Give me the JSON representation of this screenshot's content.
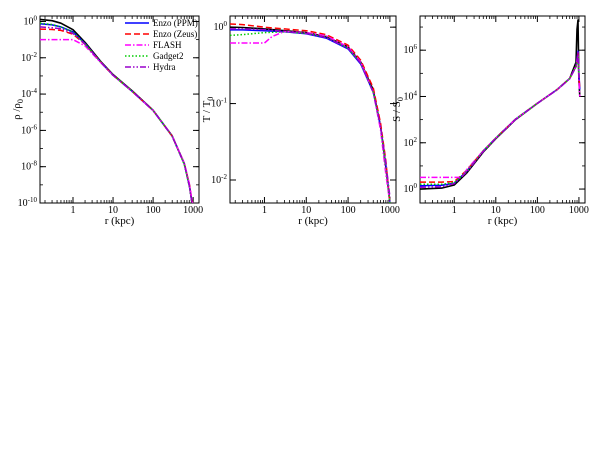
{
  "figure": {
    "legend": [
      {
        "name": "Enzo (PPM)",
        "color": "#0000ff",
        "dash": "solid"
      },
      {
        "name": "Enzo (Zeus)",
        "color": "#ff0000",
        "dash": "dashed"
      },
      {
        "name": "FLASH",
        "color": "#ff00ff",
        "dash": "dashdot"
      },
      {
        "name": "Gadget2",
        "color": "#00cc00",
        "dash": "dotted"
      },
      {
        "name": "Hydra",
        "color": "#9900cc",
        "dash": "dashdotdot"
      }
    ]
  },
  "chart_data": [
    {
      "type": "line",
      "title": "",
      "xlabel": "r (kpc)",
      "ylabel": "ρ /ρ",
      "ylabel_sub": "0",
      "xscale": "log",
      "yscale": "log",
      "xlim": [
        0.15,
        1400
      ],
      "ylim": [
        1e-10,
        2
      ],
      "xticks": [
        {
          "v": 1,
          "label": "1"
        },
        {
          "v": 10,
          "label": "10"
        },
        {
          "v": 100,
          "label": "100"
        },
        {
          "v": 1000,
          "label": "1000"
        }
      ],
      "yticks": [
        {
          "v": 1e-10,
          "base": "10",
          "exp": "-10"
        },
        {
          "v": 1e-08,
          "base": "10",
          "exp": "-8"
        },
        {
          "v": 1e-06,
          "base": "10",
          "exp": "-6"
        },
        {
          "v": 0.0001,
          "base": "10",
          "exp": "-4"
        },
        {
          "v": 0.01,
          "base": "10",
          "exp": "-2"
        },
        {
          "v": 1,
          "base": "10",
          "exp": "0"
        }
      ],
      "legend_placement": "top-right",
      "series": [
        {
          "key": "black",
          "color": "#000000",
          "dash": "solid",
          "x": [
            0.15,
            0.3,
            0.5,
            1,
            2,
            5,
            10,
            30,
            100,
            300,
            600,
            800,
            900,
            1000
          ],
          "y": [
            1.3,
            1.1,
            0.8,
            0.35,
            0.07,
            0.006,
            0.0012,
            0.00015,
            1.3e-05,
            5e-07,
            1.5e-08,
            1e-09,
            2e-10,
            5e-11
          ]
        },
        {
          "key": "enzo_ppm",
          "color": "#0000ff",
          "dash": "solid",
          "x": [
            0.15,
            0.3,
            0.5,
            1,
            2,
            5,
            10,
            30,
            100,
            300,
            600,
            800,
            900,
            1000
          ],
          "y": [
            0.75,
            0.65,
            0.5,
            0.27,
            0.06,
            0.0055,
            0.0011,
            0.00014,
            1.25e-05,
            4.8e-07,
            1.4e-08,
            9e-10,
            1.8e-10,
            5e-11
          ]
        },
        {
          "key": "enzo_zeus",
          "color": "#ff0000",
          "dash": "dashed",
          "x": [
            0.15,
            0.3,
            0.5,
            1,
            2,
            5,
            10,
            30,
            100,
            300,
            600,
            800,
            900,
            1000
          ],
          "y": [
            0.38,
            0.36,
            0.32,
            0.2,
            0.055,
            0.0055,
            0.0011,
            0.00014,
            1.25e-05,
            4.8e-07,
            1.5e-08,
            1.1e-09,
            2.2e-10,
            6e-11
          ]
        },
        {
          "key": "flash",
          "color": "#ff00ff",
          "dash": "dashdot",
          "x": [
            0.15,
            0.3,
            0.5,
            1,
            2,
            5,
            10,
            30,
            100,
            300,
            600,
            800,
            900,
            1000
          ],
          "y": [
            0.1,
            0.1,
            0.1,
            0.1,
            0.045,
            0.0052,
            0.0011,
            0.00014,
            1.25e-05,
            4.9e-07,
            1.6e-08,
            1.2e-09,
            2.5e-10,
            7e-11
          ]
        },
        {
          "key": "gadget2",
          "color": "#00cc00",
          "dash": "dotted",
          "x": [
            0.15,
            0.3,
            0.5,
            1,
            2,
            5,
            10,
            30,
            100,
            300,
            600,
            800,
            900,
            1000
          ],
          "y": [
            0.8,
            0.68,
            0.5,
            0.26,
            0.058,
            0.0055,
            0.0011,
            0.00014,
            1.25e-05,
            4.7e-07,
            1.3e-08,
            8e-10,
            1.6e-10,
            4e-11
          ]
        },
        {
          "key": "hydra",
          "color": "#9900cc",
          "dash": "dashdotdot",
          "x": [
            0.15,
            0.3,
            0.5,
            1,
            2,
            5,
            10,
            30,
            100,
            300,
            600,
            800,
            900,
            1000
          ],
          "y": [
            0.5,
            0.45,
            0.4,
            0.22,
            0.056,
            0.0055,
            0.0011,
            0.00014,
            1.25e-05,
            4.8e-07,
            1.4e-08,
            9e-10,
            1.7e-10,
            4.5e-11
          ]
        }
      ]
    },
    {
      "type": "line",
      "title": "",
      "xlabel": "r (kpc)",
      "ylabel": "T / T",
      "ylabel_sub": "0",
      "xscale": "log",
      "yscale": "log",
      "xlim": [
        0.15,
        1400
      ],
      "ylim": [
        0.005,
        1.4
      ],
      "xticks": [
        {
          "v": 1,
          "label": "1"
        },
        {
          "v": 10,
          "label": "10"
        },
        {
          "v": 100,
          "label": "100"
        },
        {
          "v": 1000,
          "label": "1000"
        }
      ],
      "yticks": [
        {
          "v": 0.01,
          "base": "10",
          "exp": "-2"
        },
        {
          "v": 0.1,
          "base": "10",
          "exp": "-1"
        },
        {
          "v": 1,
          "base": "10",
          "exp": "0"
        }
      ],
      "series": [
        {
          "key": "black",
          "color": "#000000",
          "dash": "solid",
          "x": [
            0.15,
            0.3,
            1,
            3,
            10,
            30,
            100,
            200,
            400,
            600,
            800,
            1000
          ],
          "y": [
            1.0,
            0.99,
            0.95,
            0.9,
            0.85,
            0.75,
            0.55,
            0.35,
            0.15,
            0.05,
            0.015,
            0.005
          ]
        },
        {
          "key": "enzo_ppm",
          "color": "#0000ff",
          "dash": "solid",
          "x": [
            0.15,
            0.3,
            1,
            3,
            10,
            30,
            100,
            200,
            400,
            600,
            800,
            1000
          ],
          "y": [
            0.92,
            0.92,
            0.9,
            0.87,
            0.82,
            0.72,
            0.52,
            0.33,
            0.14,
            0.05,
            0.016,
            0.005
          ]
        },
        {
          "key": "enzo_zeus",
          "color": "#ff0000",
          "dash": "dashed",
          "x": [
            0.15,
            0.3,
            1,
            3,
            10,
            30,
            100,
            200,
            400,
            600,
            800,
            1000
          ],
          "y": [
            1.1,
            1.08,
            1.0,
            0.95,
            0.9,
            0.8,
            0.58,
            0.37,
            0.16,
            0.055,
            0.018,
            0.005
          ]
        },
        {
          "key": "flash",
          "color": "#ff00ff",
          "dash": "dashdot",
          "x": [
            0.15,
            0.3,
            1,
            1.5,
            3,
            10,
            30,
            100,
            200,
            400,
            600,
            800,
            1000
          ],
          "y": [
            0.62,
            0.62,
            0.62,
            0.75,
            0.88,
            0.85,
            0.77,
            0.55,
            0.35,
            0.14,
            0.045,
            0.012,
            0.005
          ]
        },
        {
          "key": "gadget2",
          "color": "#00cc00",
          "dash": "dotted",
          "x": [
            0.15,
            0.3,
            1,
            3,
            10,
            30,
            100,
            200,
            400,
            600,
            800,
            1000
          ],
          "y": [
            0.78,
            0.8,
            0.85,
            0.87,
            0.83,
            0.74,
            0.53,
            0.34,
            0.14,
            0.05,
            0.015,
            0.005
          ]
        },
        {
          "key": "hydra",
          "color": "#9900cc",
          "dash": "dashdotdot",
          "x": [
            0.15,
            0.3,
            1,
            3,
            10,
            30,
            100,
            200,
            400,
            600,
            800,
            1000
          ],
          "y": [
            0.95,
            0.95,
            0.93,
            0.88,
            0.83,
            0.73,
            0.53,
            0.34,
            0.14,
            0.05,
            0.017,
            0.006
          ]
        }
      ]
    },
    {
      "type": "line",
      "title": "",
      "xlabel": "r (kpc)",
      "ylabel": "S / S",
      "ylabel_sub": "0",
      "xscale": "log",
      "yscale": "log",
      "xlim": [
        0.15,
        1400
      ],
      "ylim": [
        0.25,
        30000000.0
      ],
      "xticks": [
        {
          "v": 1,
          "label": "1"
        },
        {
          "v": 10,
          "label": "10"
        },
        {
          "v": 100,
          "label": "100"
        },
        {
          "v": 1000,
          "label": "1000"
        }
      ],
      "yticks": [
        {
          "v": 1,
          "base": "10",
          "exp": "0"
        },
        {
          "v": 100,
          "base": "10",
          "exp": "2"
        },
        {
          "v": 10000,
          "base": "10",
          "exp": "4"
        },
        {
          "v": 1000000,
          "base": "10",
          "exp": "6"
        }
      ],
      "series": [
        {
          "key": "black",
          "color": "#000000",
          "dash": "solid",
          "x": [
            0.15,
            0.5,
            1,
            2,
            5,
            10,
            30,
            100,
            300,
            600,
            850,
            900,
            950,
            1000,
            1050
          ],
          "y": [
            1.0,
            1.1,
            1.5,
            5,
            40,
            150,
            1000,
            5000,
            20000,
            60000,
            300000,
            8000000,
            20000000,
            50000,
            10000
          ]
        },
        {
          "key": "enzo_ppm",
          "color": "#0000ff",
          "dash": "solid",
          "x": [
            0.15,
            0.5,
            1,
            2,
            5,
            10,
            30,
            100,
            300,
            600,
            850,
            950,
            1000,
            1050
          ],
          "y": [
            1.4,
            1.45,
            1.8,
            6,
            45,
            160,
            1050,
            5100,
            20000,
            60000,
            200000,
            900000,
            100000,
            20000
          ]
        },
        {
          "key": "enzo_zeus",
          "color": "#ff0000",
          "dash": "dashed",
          "x": [
            0.15,
            0.5,
            1,
            2,
            5,
            10,
            30,
            100,
            300,
            600,
            850,
            950,
            1000,
            1050
          ],
          "y": [
            2.0,
            2.0,
            2.1,
            6.5,
            45,
            160,
            1050,
            5100,
            20000,
            60000,
            200000,
            700000,
            80000,
            20000
          ]
        },
        {
          "key": "flash",
          "color": "#ff00ff",
          "dash": "dashdot",
          "x": [
            0.15,
            0.5,
            1,
            1.5,
            2,
            5,
            10,
            30,
            100,
            300,
            600,
            850,
            950,
            1000,
            1050
          ],
          "y": [
            3.2,
            3.2,
            3.2,
            3.2,
            7,
            45,
            160,
            1050,
            5100,
            20000,
            60000,
            200000,
            600000,
            50000,
            10000
          ]
        },
        {
          "key": "gadget2",
          "color": "#00cc00",
          "dash": "dotted",
          "x": [
            0.15,
            0.5,
            1,
            2,
            5,
            10,
            30,
            100,
            300,
            600,
            850,
            950,
            1000
          ],
          "y": [
            1.6,
            1.6,
            1.9,
            6,
            45,
            160,
            1050,
            5100,
            20000,
            60000,
            200000,
            500000,
            80000
          ]
        },
        {
          "key": "hydra",
          "color": "#9900cc",
          "dash": "dashdotdot",
          "x": [
            0.15,
            0.5,
            1,
            2,
            5,
            10,
            30,
            100,
            300,
            600,
            850,
            950,
            1000
          ],
          "y": [
            1.2,
            1.25,
            1.7,
            5.5,
            42,
            155,
            1020,
            5000,
            19500,
            59000,
            190000,
            800000,
            60000
          ]
        }
      ]
    }
  ]
}
